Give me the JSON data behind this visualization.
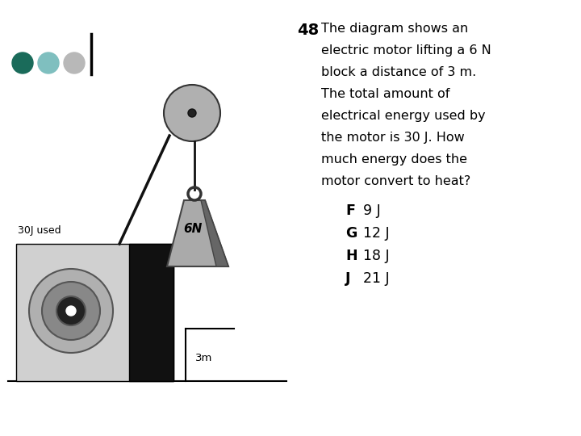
{
  "bg_color": "#ffffff",
  "question_number": "48",
  "question_text": "The diagram shows an\nelectric motor lifting a 6 N\nblock a distance of 3 m.\nThe total amount of\nelectrical energy used by\nthe motor is 30 J. How\nmuch energy does the\nmotor convert to heat?",
  "answers": [
    {
      "letter": "F",
      "text": "9 J"
    },
    {
      "letter": "G",
      "text": "12 J"
    },
    {
      "letter": "H",
      "text": "18 J"
    },
    {
      "letter": "J",
      "text": "21 J"
    }
  ],
  "dot_colors": [
    "#1a6b5a",
    "#7fbfbf",
    "#b8b8b8"
  ],
  "motor_box_light": "#d0d0d0",
  "motor_box_dark": "#111111",
  "motor_disk_outer": "#b0b0b0",
  "motor_disk_mid": "#888888",
  "motor_disk_inner": "#222222",
  "pulley_color": "#b0b0b0",
  "weight_light": "#aaaaaa",
  "weight_mid": "#888888",
  "weight_dark": "#666666",
  "rope_color": "#111111",
  "label_30j": "30J used",
  "label_3m": "3m",
  "label_6n": "6N"
}
